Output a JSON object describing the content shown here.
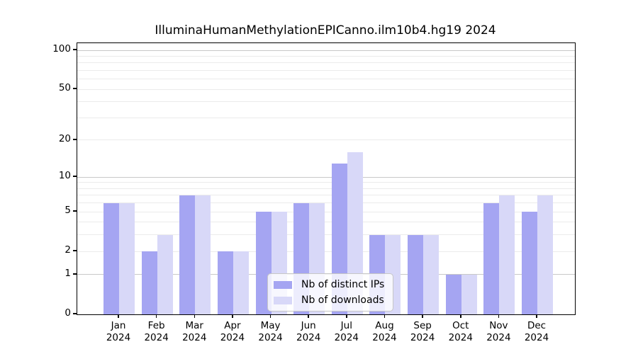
{
  "chart_data": {
    "type": "bar",
    "title": "IlluminaHumanMethylationEPICanno.ilm10b4.hg19 2024",
    "categories": [
      "Jan",
      "Feb",
      "Mar",
      "Apr",
      "May",
      "Jun",
      "Jul",
      "Aug",
      "Sep",
      "Oct",
      "Nov",
      "Dec"
    ],
    "x_tick_year": "2024",
    "series": [
      {
        "name": "Nb of distinct IPs",
        "values": [
          6,
          2,
          7,
          2,
          5,
          6,
          13,
          3,
          3,
          1,
          6,
          5
        ]
      },
      {
        "name": "Nb of downloads",
        "values": [
          6,
          3,
          7,
          2,
          5,
          6,
          16,
          3,
          3,
          1,
          7,
          7
        ]
      }
    ],
    "yscale": "log1p",
    "ylim": [
      0,
      100
    ],
    "yticks": [
      0,
      1,
      2,
      5,
      10,
      20,
      50,
      100
    ],
    "ytick_labels": [
      "0",
      "1",
      "2",
      "5",
      "10",
      "20",
      "50",
      "100"
    ],
    "minor_gridline_values": [
      2,
      3,
      4,
      5,
      6,
      7,
      8,
      9,
      20,
      30,
      40,
      50,
      60,
      70,
      80,
      90
    ],
    "major_gridline_values": [
      1,
      10,
      100
    ],
    "grid": "horizontal",
    "legend_position": "lower-center-inside"
  },
  "legend": {
    "ips_label": "Nb of distinct IPs",
    "downloads_label": "Nb of downloads"
  },
  "colors": {
    "ips_bar": "#a5a5f2",
    "downloads_bar": "#d8d8f8",
    "major_grid": "#c8c8c8",
    "minor_grid": "#ebebeb",
    "axis": "#000000",
    "background": "#ffffff"
  }
}
